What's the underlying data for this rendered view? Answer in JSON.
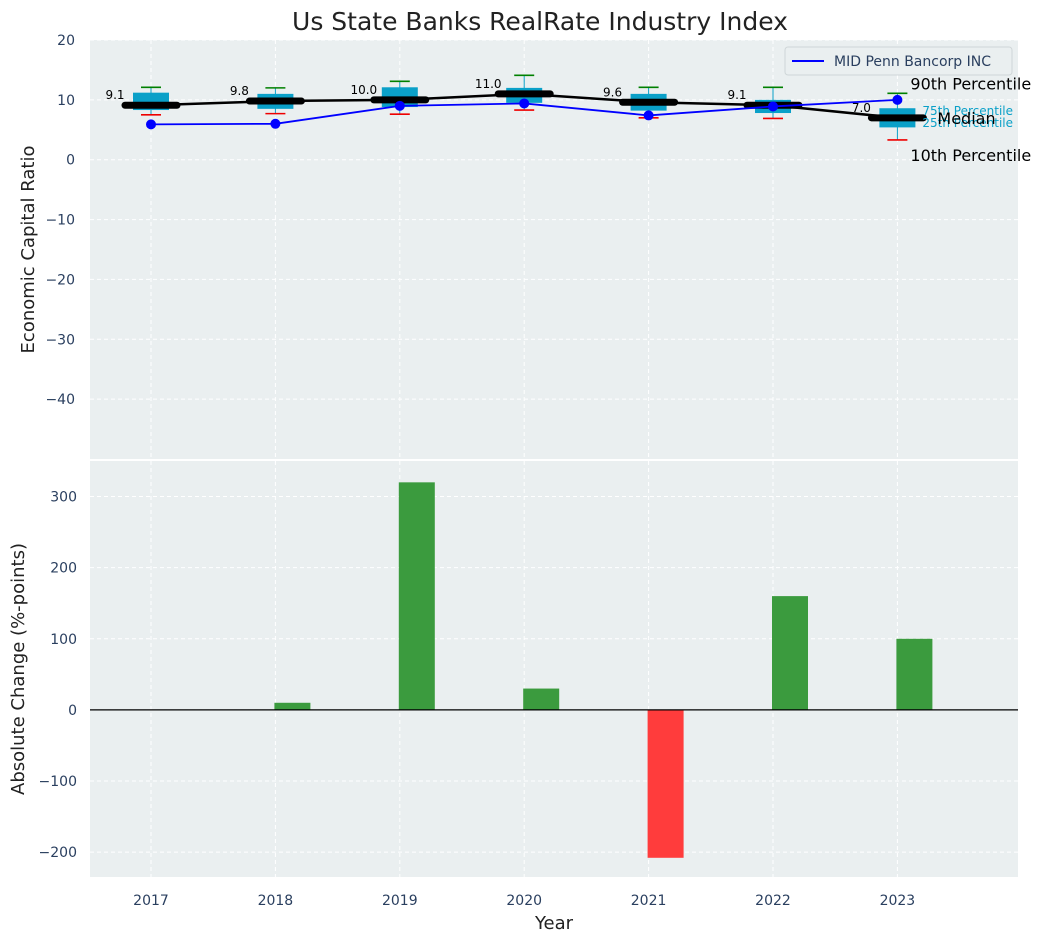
{
  "chart_data": [
    {
      "type": "box",
      "title": "Us State Banks RealRate Industry Index",
      "xlabel": "",
      "ylabel": "Economic Capital Ratio",
      "ylim": [
        -50,
        20
      ],
      "yticks": [
        20,
        10,
        0,
        -10,
        -20,
        -30,
        -40
      ],
      "grid": true,
      "legend_position": "top-right",
      "legend": [
        "MID Penn Bancorp INC"
      ],
      "categories": [
        "2017",
        "2018",
        "2019",
        "2020",
        "2021",
        "2022",
        "2023"
      ],
      "percentile_boxes": [
        {
          "p10": 7.5,
          "p25": 8.3,
          "median": 9.1,
          "p75": 11.2,
          "p90": 12.1
        },
        {
          "p10": 7.7,
          "p25": 8.5,
          "median": 9.8,
          "p75": 11.0,
          "p90": 12.0
        },
        {
          "p10": 7.6,
          "p25": 8.8,
          "median": 10.0,
          "p75": 12.1,
          "p90": 13.1
        },
        {
          "p10": 8.3,
          "p25": 9.5,
          "median": 11.0,
          "p75": 12.0,
          "p90": 14.1
        },
        {
          "p10": 7.0,
          "p25": 8.2,
          "median": 9.6,
          "p75": 11.0,
          "p90": 12.1
        },
        {
          "p10": 6.9,
          "p25": 7.8,
          "median": 9.1,
          "p75": 10.0,
          "p90": 12.1
        },
        {
          "p10": 3.3,
          "p25": 5.4,
          "median": 7.0,
          "p75": 8.6,
          "p90": 11.1
        }
      ],
      "median_labels": [
        "9.1",
        "9.8",
        "10.0",
        "11.0",
        "9.6",
        "9.1",
        "7.0"
      ],
      "series": [
        {
          "name": "MID Penn Bancorp INC",
          "values": [
            5.9,
            6.0,
            9.0,
            9.4,
            7.4,
            8.9,
            10.0
          ]
        }
      ],
      "annotations": {
        "p90": "90th Percentile",
        "p75": "75th Percentile",
        "median": "Median",
        "p25": "25th Percentile",
        "p10": "10th Percentile"
      }
    },
    {
      "type": "bar",
      "xlabel": "Year",
      "ylabel": "Absolute Change (%-points)",
      "ylim": [
        -235,
        350
      ],
      "yticks": [
        300,
        200,
        100,
        0,
        -100,
        -200
      ],
      "grid": true,
      "categories": [
        "2017",
        "2018",
        "2019",
        "2020",
        "2021",
        "2022",
        "2023"
      ],
      "values": [
        0,
        10,
        320,
        30,
        -208,
        160,
        100
      ],
      "positive_color": "#3b9b3e",
      "negative_color": "#ff3c3c"
    }
  ],
  "colors": {
    "background": "#eaeff0",
    "box_fill": "#0aa0c8",
    "median_line": "#000000",
    "series_line": "#0000ff",
    "whisker_top": "#008000",
    "whisker_bottom": "#ee0000",
    "text": "#2a3f5f"
  }
}
